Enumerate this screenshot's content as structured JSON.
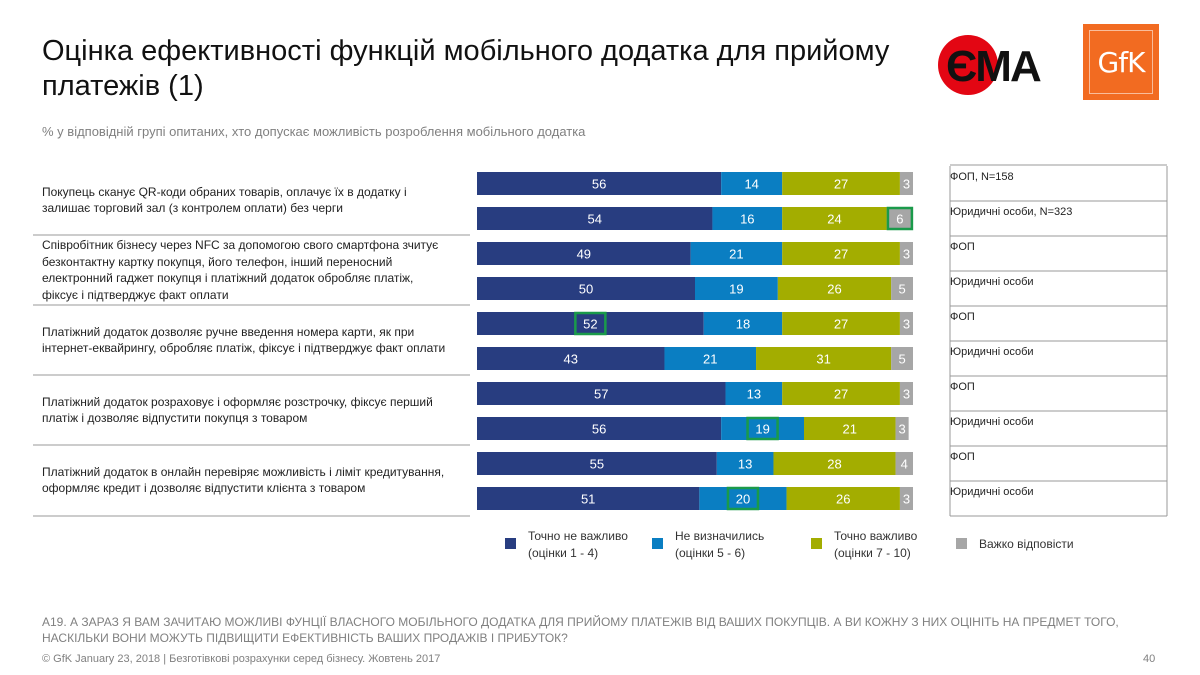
{
  "title": "Оцінка ефективності функцій мобільного додатка для прийому платежів (1)",
  "subtitle": "% у відповідній групі опитаних, хто допускає можливість розроблення мобільного додатка",
  "logos": {
    "ema": "ЄМА",
    "gfk": "GfK"
  },
  "colors": {
    "c1": "#283d80",
    "c2": "#0a7ec2",
    "c3": "#a3ad00",
    "c4": "#a6a6a6",
    "highlight": "#1a9a4a"
  },
  "chart_data": {
    "type": "bar",
    "orientation": "horizontal-stacked-100",
    "legend": [
      {
        "name": "Точно не важливо",
        "sub": "(оцінки 1 - 4)",
        "color": "#283d80"
      },
      {
        "name": "Не визначились",
        "sub": "(оцінки 5 - 6)",
        "color": "#0a7ec2"
      },
      {
        "name": "Точно важливо",
        "sub": "(оцінки 7 - 10)",
        "color": "#a3ad00"
      },
      {
        "name": "Важко відповісти",
        "sub": "",
        "color": "#a6a6a6"
      }
    ],
    "groups": [
      {
        "question": "Покупець сканує QR-коди обраних товарів, оплачує їх в додатку і залишає торговий зал (з контролем оплати) без черги",
        "rows": [
          {
            "segment": "ФОП, N=158",
            "values": [
              56,
              14,
              27,
              3
            ],
            "highlight": null
          },
          {
            "segment": "Юридичні особи, N=323",
            "values": [
              54,
              16,
              24,
              6
            ],
            "highlight": 3
          }
        ]
      },
      {
        "question": "Співробітник бізнесу через NFC за допомогою свого смартфона зчитує безконтактну картку покупця, його телефон, інший переносний електронний гаджет покупця і платіжний додаток обробляє платіж, фіксує і підтверджує факт оплати",
        "rows": [
          {
            "segment": "ФОП",
            "values": [
              49,
              21,
              27,
              3
            ],
            "highlight": null
          },
          {
            "segment": "Юридичні особи",
            "values": [
              50,
              19,
              26,
              5
            ],
            "highlight": null
          }
        ]
      },
      {
        "question": "Платіжний додаток дозволяє ручне введення номера карти, як при інтернет-еквайрингу, обробляє платіж, фіксує і підтверджує факт оплати",
        "rows": [
          {
            "segment": "ФОП",
            "values": [
              52,
              18,
              27,
              3
            ],
            "highlight": 0
          },
          {
            "segment": "Юридичні особи",
            "values": [
              43,
              21,
              31,
              5
            ],
            "highlight": null
          }
        ]
      },
      {
        "question": "Платіжний додаток розраховує і оформляє розстрочку, фіксує перший платіж і дозволяє відпустити покупця з товаром",
        "rows": [
          {
            "segment": "ФОП",
            "values": [
              57,
              13,
              27,
              3
            ],
            "highlight": null
          },
          {
            "segment": "Юридичні особи",
            "values": [
              56,
              19,
              21,
              3
            ],
            "highlight": 1
          }
        ]
      },
      {
        "question": "Платіжний додаток в онлайн перевіряє можливість і ліміт кредитування, оформляє кредит і дозволяє відпустити клієнта з товаром",
        "rows": [
          {
            "segment": "ФОП",
            "values": [
              55,
              13,
              28,
              4
            ],
            "highlight": null
          },
          {
            "segment": "Юридичні особи",
            "values": [
              51,
              20,
              26,
              3
            ],
            "highlight": 1
          }
        ]
      }
    ]
  },
  "footnote": "А19. А ЗАРАЗ Я ВАМ ЗАЧИТАЮ МОЖЛИВІ ФУНЦІЇ ВЛАСНОГО МОБІЛЬНОГО ДОДАТКА ДЛЯ ПРИЙОМУ ПЛАТЕЖІВ ВІД ВАШИХ ПОКУПЦІВ. А ВИ КОЖНУ З НИХ ОЦІНІТЬ НА ПРЕДМЕТ ТОГО, НАСКІЛЬКИ ВОНИ МОЖУТЬ ПІДВИЩИТИ ЕФЕКТИВНІСТЬ ВАШИХ ПРОДАЖІВ І ПРИБУТОК?",
  "footer": "© GfK January 23, 2018 | Безготівкові розрахунки серед бізнесу. Жовтень 2017",
  "page_number": "40"
}
